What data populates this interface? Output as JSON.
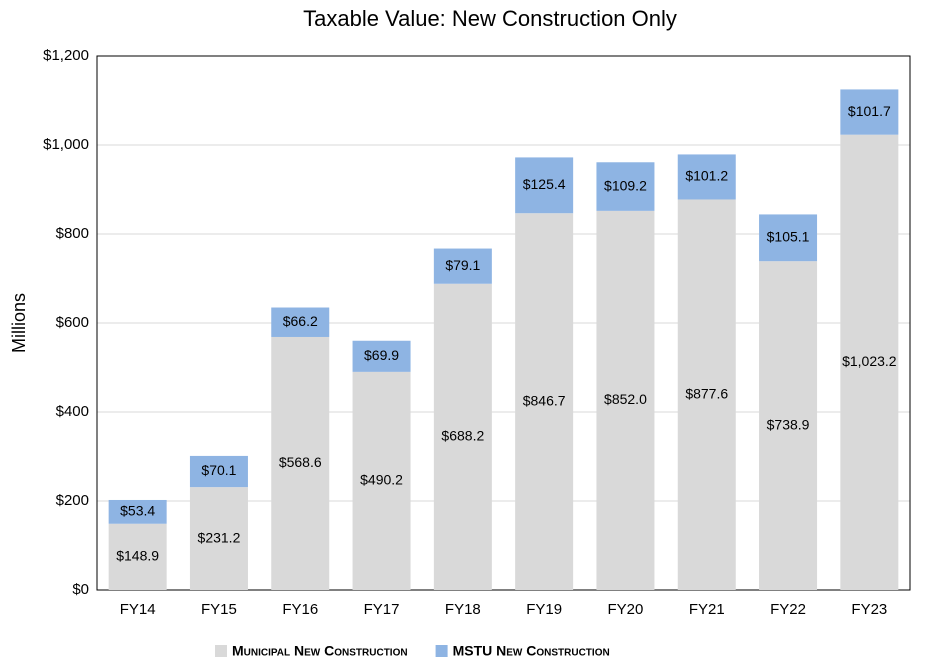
{
  "chart_data": {
    "type": "stacked_bar",
    "title": "Taxable Value: New Construction Only",
    "y_label": "Millions",
    "categories": [
      "FY14",
      "FY15",
      "FY16",
      "FY17",
      "FY18",
      "FY19",
      "FY20",
      "FY21",
      "FY22",
      "FY23"
    ],
    "series": [
      {
        "name": "Municipal New Construction",
        "color": "#d9d9d9",
        "values": [
          148.9,
          231.2,
          568.6,
          490.2,
          688.2,
          846.7,
          852.0,
          877.6,
          738.9,
          1023.2
        ],
        "value_labels": [
          "$148.9",
          "$231.2",
          "$568.6",
          "$490.2",
          "$688.2",
          "$846.7",
          "$852.0",
          "$877.6",
          "$738.9",
          "$1,023.2"
        ]
      },
      {
        "name": "MSTU New Construction",
        "color": "#8eb4e3",
        "values": [
          53.4,
          70.1,
          66.2,
          69.9,
          79.1,
          125.4,
          109.2,
          101.2,
          105.1,
          101.7
        ],
        "value_labels": [
          "$53.4",
          "$70.1",
          "$66.2",
          "$69.9",
          "$79.1",
          "$125.4",
          "$109.2",
          "$101.2",
          "$105.1",
          "$101.7"
        ]
      }
    ],
    "ylim": [
      0,
      1200
    ],
    "yticks": [
      {
        "value": 0,
        "label": "$0"
      },
      {
        "value": 200,
        "label": "$200"
      },
      {
        "value": 400,
        "label": "$400"
      },
      {
        "value": 600,
        "label": "$600"
      },
      {
        "value": 800,
        "label": "$800"
      },
      {
        "value": 1000,
        "label": "$1,000"
      },
      {
        "value": 1200,
        "label": "$1,200"
      }
    ],
    "grid": true
  }
}
